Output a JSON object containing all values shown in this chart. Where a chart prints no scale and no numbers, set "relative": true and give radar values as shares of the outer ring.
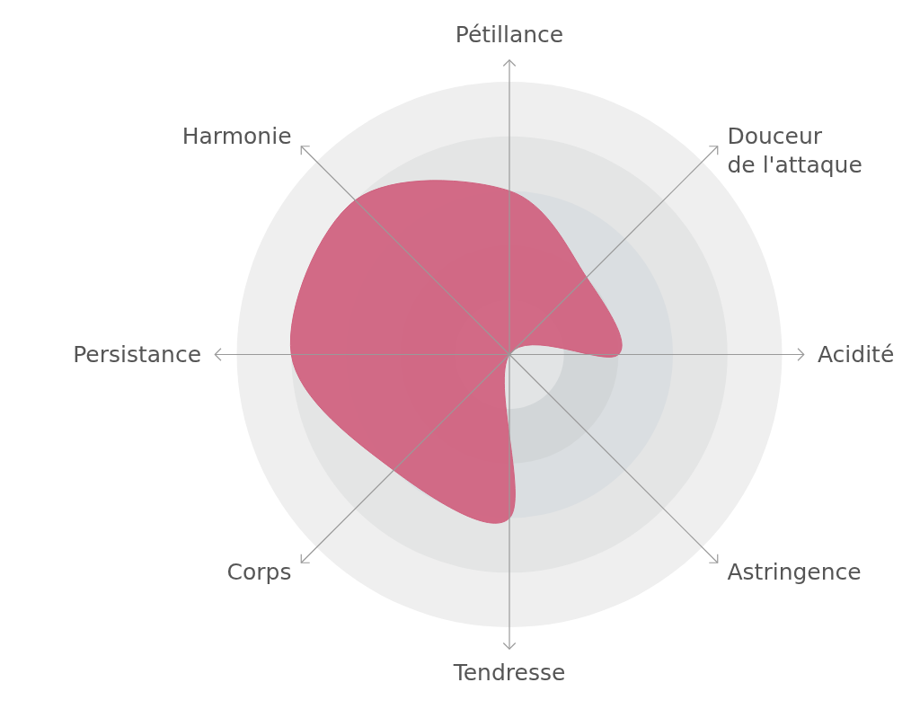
{
  "chart_data": {
    "type": "radar",
    "relative": true,
    "grid": true,
    "categories": [
      "Pétillance",
      "Douceur de l'attaque",
      "Acidité",
      "Astringence",
      "Tendresse",
      "Corps",
      "Persistance",
      "Harmonie"
    ],
    "series": [
      {
        "color": "#d0607e",
        "values": [
          0.6,
          0.4,
          0.4,
          0,
          0.6,
          0.6,
          0.8,
          0.8
        ]
      }
    ]
  }
}
